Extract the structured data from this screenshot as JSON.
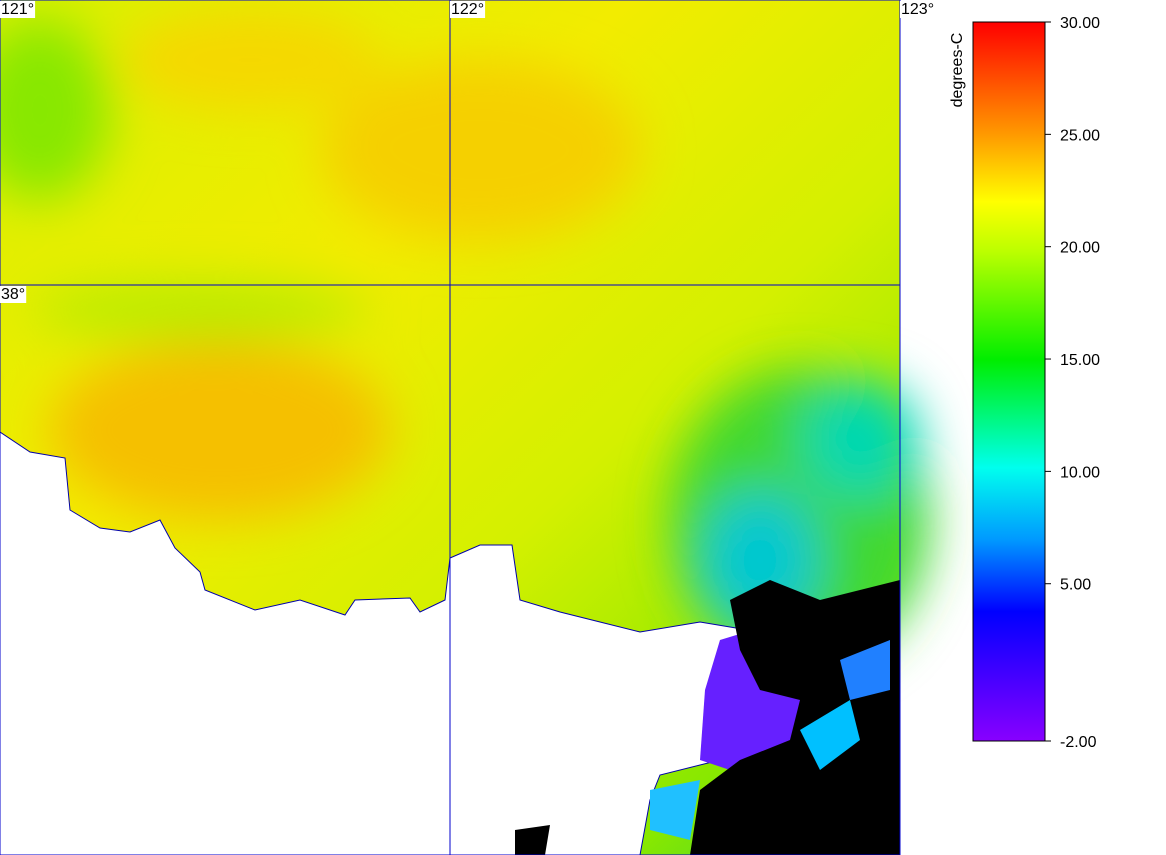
{
  "map": {
    "xlim": [
      121,
      123
    ],
    "ylim": [
      37.0,
      38.5
    ],
    "xticks": [
      {
        "value": 121,
        "label": "121°"
      },
      {
        "value": 122,
        "label": "122°"
      },
      {
        "value": 123,
        "label": "123°"
      }
    ],
    "yticks": [
      {
        "value": 38,
        "label": "38°"
      }
    ]
  },
  "colorbar": {
    "label": "degrees-C",
    "lim": [
      -2,
      30
    ],
    "ticks": [
      {
        "value": 30,
        "label": "30.00"
      },
      {
        "value": 25,
        "label": "25.00"
      },
      {
        "value": 20,
        "label": "20.00"
      },
      {
        "value": 15,
        "label": "15.00"
      },
      {
        "value": 10,
        "label": "10.00"
      },
      {
        "value": 5,
        "label": "5.00"
      },
      {
        "value": -2,
        "label": "-2.00"
      }
    ]
  }
}
